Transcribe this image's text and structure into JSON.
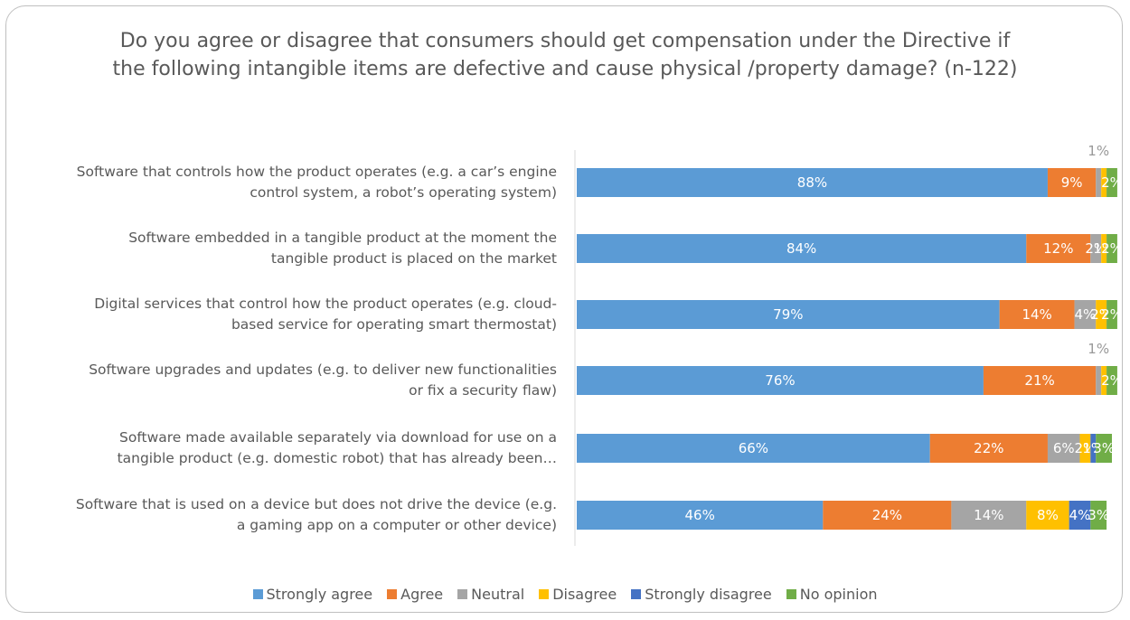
{
  "chart_data": {
    "type": "bar",
    "orientation": "horizontal",
    "stacked": true,
    "title": "Do you agree or disagree that consumers should get compensation under the Directive if the following intangible items are defective and cause physical /property damage? (n-122)",
    "categories": [
      [
        "Software that controls how the product operates (e.g. a car’s engine",
        "control system, a robot’s operating system)"
      ],
      [
        "Software embedded in a tangible product at the moment the",
        "tangible product is placed on the market"
      ],
      [
        "Digital services that control how the product operates (e.g. cloud-",
        "based service for operating smart thermostat)"
      ],
      [
        "Software upgrades and updates (e.g. to deliver new functionalities",
        "or fix a security flaw)"
      ],
      [
        "Software made available separately via download for use on a",
        "tangible product (e.g. domestic robot) that has already been…"
      ],
      [
        "Software that is used on a device but does not drive the device (e.g.",
        "a gaming app on a computer or other device)"
      ]
    ],
    "series": [
      {
        "name": "Strongly agree",
        "color": "#5B9BD5",
        "values": [
          88,
          84,
          79,
          76,
          66,
          46
        ],
        "labels": [
          "88%",
          "84%",
          "79%",
          "76%",
          "66%",
          "46%"
        ]
      },
      {
        "name": "Agree",
        "color": "#ED7D31",
        "values": [
          9,
          12,
          14,
          21,
          22,
          24
        ],
        "labels": [
          "9%",
          "12%",
          "14%",
          "21%",
          "22%",
          "24%"
        ]
      },
      {
        "name": "Neutral",
        "color": "#A5A5A5",
        "values": [
          1,
          2,
          4,
          1,
          6,
          14
        ],
        "labels": [
          "1%",
          "2%",
          "4%",
          "1%",
          "6%",
          "14%"
        ]
      },
      {
        "name": "Disagree",
        "color": "#FFC000",
        "values": [
          1,
          1,
          2,
          1,
          2,
          8
        ],
        "labels": [
          "",
          "1%",
          "2%",
          "",
          "2%",
          "8%"
        ]
      },
      {
        "name": "Strongly disagree",
        "color": "#4472C4",
        "values": [
          0,
          0,
          0,
          0,
          1,
          4
        ],
        "labels": [
          "",
          "",
          "",
          "",
          "1%",
          "4%"
        ]
      },
      {
        "name": "No opinion",
        "color": "#70AD47",
        "values": [
          2,
          2,
          2,
          2,
          3,
          3
        ],
        "labels": [
          "2%",
          "2%",
          "2%",
          "2%",
          "3%",
          "3%"
        ]
      }
    ],
    "xlim": [
      0,
      100
    ],
    "grid": false,
    "legend_position": "bottom"
  }
}
